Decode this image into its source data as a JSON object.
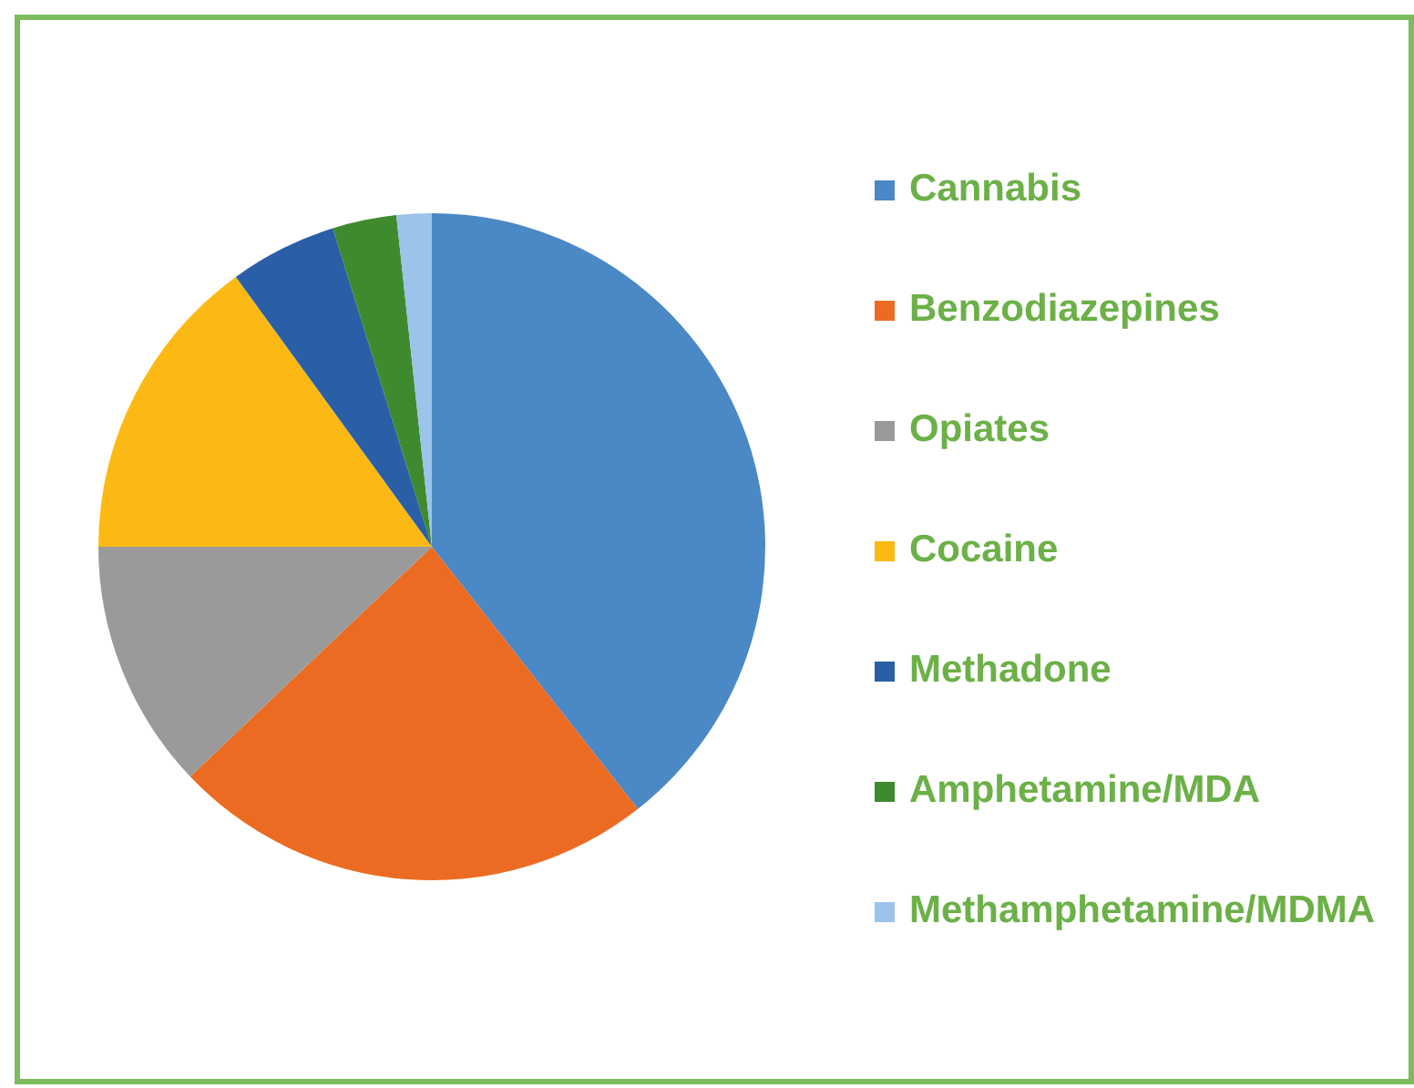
{
  "chart_data": {
    "type": "pie",
    "categories": [
      "Cannabis",
      "Benzodiazepines",
      "Opiates",
      "Cocaine",
      "Methadone",
      "Amphetamine/MDA",
      "Methamphetamine/MDMA"
    ],
    "values": [
      39.4,
      23.5,
      12.1,
      15.0,
      5.2,
      3.1,
      1.7
    ],
    "colors": [
      "#4b88c6",
      "#ec6b22",
      "#9a9a9a",
      "#fdb913",
      "#2a5fa8",
      "#3f8a2e",
      "#9cc3ea"
    ],
    "legend": "right"
  }
}
